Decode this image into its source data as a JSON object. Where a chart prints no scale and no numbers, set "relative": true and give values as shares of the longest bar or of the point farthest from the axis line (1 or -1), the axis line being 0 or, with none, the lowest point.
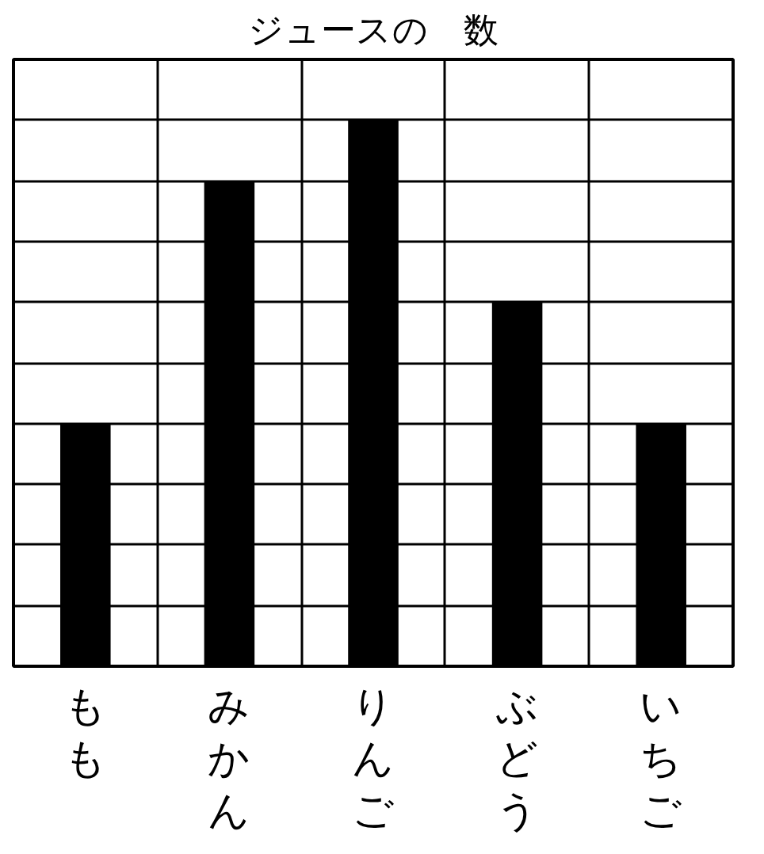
{
  "chart_data": {
    "type": "bar",
    "title": "ジュースの　数",
    "categories": [
      "もも",
      "みかん",
      "りんご",
      "ぶどう",
      "いちご"
    ],
    "values": [
      0.444,
      0.889,
      1,
      0.667,
      0.444
    ],
    "color": "#000000",
    "relative": true,
    "tick_labels": "x",
    "grid": true
  }
}
